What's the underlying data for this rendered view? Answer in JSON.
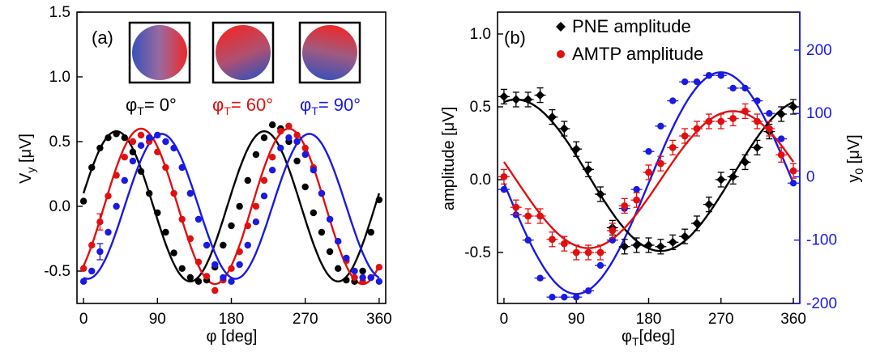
{
  "chart_data": [
    {
      "type": "scatter",
      "panel_label": "(a)",
      "xlabel": "φ [deg]",
      "ylabel": "V_y [μV]",
      "xlim": [
        -8,
        368
      ],
      "ylim": [
        -0.75,
        1.5
      ],
      "xticks": [
        "0",
        "90",
        "180",
        "270",
        "360"
      ],
      "yticks": [
        "-0.5",
        "0.0",
        "0.5",
        "1.0",
        "1.5"
      ],
      "insets": [
        {
          "label": "φ_T= 0°",
          "sub": "T",
          "prefix": "φ",
          "suffix": "= 0°",
          "color": "#000000"
        },
        {
          "label": "φ_T= 60°",
          "sub": "T",
          "prefix": "φ",
          "suffix": "= 60°",
          "color": "#e01010"
        },
        {
          "label": "φ_T= 90°",
          "sub": "T",
          "prefix": "φ",
          "suffix": "= 90°",
          "color": "#1a1ae0"
        }
      ],
      "series": [
        {
          "color": "#000000",
          "x": [
            0,
            10,
            20,
            30,
            40,
            50,
            60,
            70,
            80,
            90,
            100,
            110,
            120,
            130,
            140,
            150,
            160,
            170,
            180,
            190,
            200,
            210,
            220,
            230,
            240,
            250,
            260,
            270,
            280,
            290,
            300,
            310,
            320,
            330,
            340,
            350,
            360
          ],
          "y": [
            0.04,
            0.3,
            0.45,
            0.53,
            0.56,
            0.53,
            0.42,
            0.27,
            0.1,
            -0.05,
            -0.2,
            -0.36,
            -0.48,
            -0.55,
            -0.58,
            -0.57,
            -0.47,
            -0.3,
            -0.15,
            0.0,
            0.2,
            0.4,
            0.53,
            0.63,
            0.6,
            0.5,
            0.35,
            0.15,
            -0.05,
            -0.2,
            -0.35,
            -0.48,
            -0.57,
            -0.58,
            -0.5,
            -0.2,
            0.05
          ],
          "fit_amp": 0.58,
          "fit_phase": 40
        },
        {
          "color": "#e01010",
          "x": [
            0,
            10,
            20,
            30,
            40,
            50,
            60,
            70,
            80,
            90,
            100,
            110,
            120,
            130,
            140,
            150,
            160,
            170,
            180,
            190,
            200,
            210,
            220,
            230,
            240,
            250,
            260,
            270,
            280,
            290,
            300,
            310,
            320,
            330,
            340,
            350,
            360
          ],
          "y": [
            -0.48,
            -0.3,
            -0.12,
            0.08,
            0.24,
            0.38,
            0.5,
            0.55,
            0.5,
            0.42,
            0.3,
            0.1,
            -0.1,
            -0.25,
            -0.43,
            -0.54,
            -0.65,
            -0.57,
            -0.48,
            -0.35,
            -0.15,
            0.0,
            0.2,
            0.38,
            0.58,
            0.62,
            0.55,
            0.45,
            0.3,
            0.1,
            -0.1,
            -0.27,
            -0.42,
            -0.55,
            -0.58,
            -0.55,
            -0.47
          ],
          "err_at": [
            2
          ],
          "fit_amp": 0.6,
          "fit_phase": 70
        },
        {
          "color": "#1a1ae0",
          "x": [
            0,
            10,
            20,
            30,
            40,
            50,
            60,
            70,
            80,
            90,
            100,
            110,
            120,
            130,
            140,
            150,
            160,
            170,
            180,
            190,
            200,
            210,
            220,
            230,
            240,
            250,
            260,
            270,
            280,
            290,
            300,
            310,
            320,
            330,
            340,
            350,
            360
          ],
          "y": [
            -0.58,
            -0.5,
            -0.35,
            -0.2,
            0.0,
            0.2,
            0.35,
            0.47,
            0.53,
            0.55,
            0.5,
            0.45,
            0.3,
            0.1,
            -0.1,
            -0.3,
            -0.45,
            -0.55,
            -0.58,
            -0.45,
            -0.3,
            -0.12,
            0.08,
            0.28,
            0.45,
            0.53,
            0.5,
            0.4,
            0.28,
            0.1,
            -0.1,
            -0.27,
            -0.4,
            -0.5,
            -0.55,
            -0.55,
            -0.58
          ],
          "err_at": [
            2
          ],
          "fit_amp": 0.56,
          "fit_phase": 95
        }
      ]
    },
    {
      "type": "scatter",
      "panel_label": "(b)",
      "xlabel": "φ_T[deg]",
      "ylabel": "amplitude [μV]",
      "y2label": "y_0 [μV]",
      "xlim": [
        -8,
        368
      ],
      "ylim": [
        -0.85,
        1.15
      ],
      "y2lim": [
        -200,
        260
      ],
      "xticks": [
        "0",
        "90",
        "180",
        "270",
        "360"
      ],
      "yticks": [
        "-0.5",
        "0.0",
        "0.5",
        "1.0"
      ],
      "y2ticks": [
        "-200",
        "-100",
        "0",
        "100",
        "200"
      ],
      "legend_position": "top-right",
      "series": [
        {
          "name": "PNE amplitude",
          "marker": "diamond",
          "color": "#000000",
          "x": [
            0,
            15,
            30,
            45,
            60,
            75,
            90,
            105,
            120,
            135,
            150,
            165,
            180,
            195,
            210,
            225,
            240,
            255,
            270,
            285,
            300,
            315,
            330,
            345,
            360
          ],
          "y": [
            0.57,
            0.55,
            0.55,
            0.58,
            0.43,
            0.35,
            0.21,
            0.07,
            -0.1,
            -0.33,
            -0.46,
            -0.45,
            -0.45,
            -0.46,
            -0.43,
            -0.39,
            -0.3,
            -0.17,
            0.0,
            0.02,
            0.12,
            0.22,
            0.33,
            0.45,
            0.5
          ],
          "fit": {
            "offset": 0.03,
            "amp": 0.52,
            "peak": 15
          }
        },
        {
          "name": "AMTP amplitude",
          "marker": "circle",
          "color": "#e01010",
          "x": [
            0,
            15,
            30,
            45,
            60,
            75,
            90,
            105,
            120,
            135,
            150,
            165,
            180,
            195,
            210,
            225,
            240,
            255,
            270,
            285,
            300,
            315,
            330,
            345,
            360
          ],
          "y": [
            0.02,
            -0.19,
            -0.25,
            -0.25,
            -0.41,
            -0.44,
            -0.5,
            -0.5,
            -0.5,
            -0.35,
            -0.18,
            -0.14,
            0.05,
            0.11,
            0.22,
            0.3,
            0.35,
            0.4,
            0.4,
            0.42,
            0.47,
            0.4,
            0.35,
            0.17,
            0.06
          ],
          "fit": {
            "offset": 0.0,
            "amp": 0.47,
            "peak": 285
          }
        }
      ],
      "series_y2": {
        "color": "#1a1ae0",
        "x": [
          0,
          15,
          30,
          45,
          60,
          75,
          90,
          105,
          120,
          135,
          150,
          165,
          180,
          195,
          210,
          225,
          240,
          255,
          270,
          285,
          300,
          315,
          330,
          345,
          360
        ],
        "y": [
          -20,
          -60,
          -100,
          -160,
          -190,
          -190,
          -190,
          -180,
          -140,
          -100,
          -50,
          -20,
          40,
          80,
          120,
          150,
          150,
          160,
          160,
          140,
          140,
          120,
          100,
          60,
          -10
        ],
        "fit": {
          "offset": -10,
          "amp": 175,
          "peak": 270
        }
      }
    }
  ]
}
